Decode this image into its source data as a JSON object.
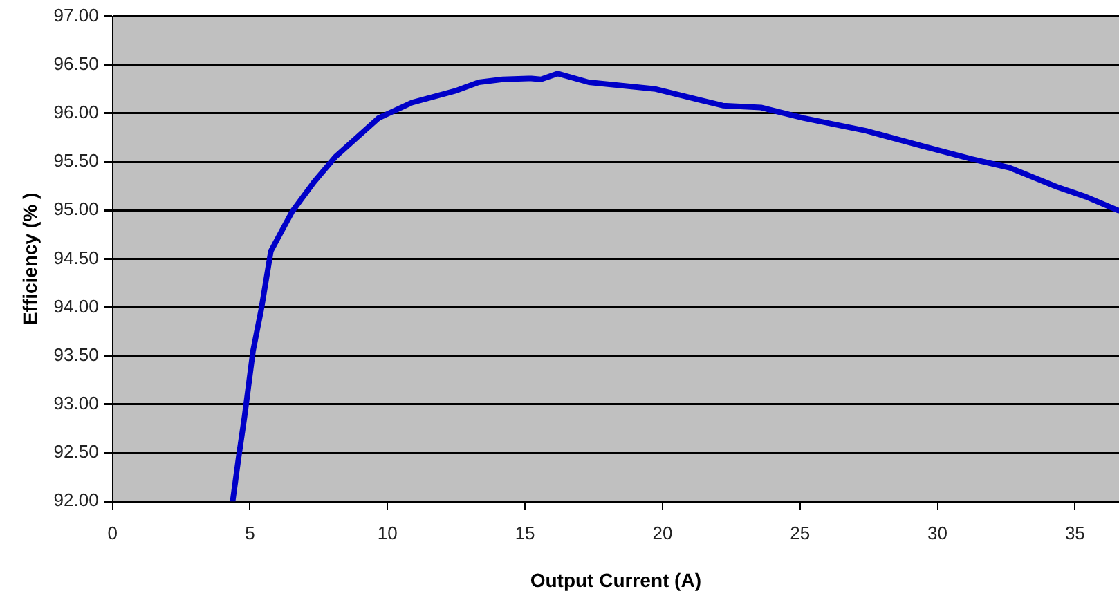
{
  "chart_data": {
    "type": "line",
    "xlabel": "Output Current (A)",
    "ylabel": "Efficiency (% )",
    "x": [
      4.37,
      4.59,
      4.8,
      5.11,
      5.41,
      5.76,
      6.54,
      7.32,
      8.1,
      9.67,
      10.89,
      12.45,
      13.32,
      14.19,
      15.23,
      15.58,
      16.19,
      17.32,
      19.75,
      22.19,
      23.58,
      25.14,
      27.4,
      29.49,
      31.23,
      32.62,
      34.36,
      35.4,
      36.57
    ],
    "series": [
      {
        "color": "#0000c8",
        "values": [
          92.0,
          92.46,
          92.87,
          93.55,
          93.98,
          94.58,
          94.99,
          95.29,
          95.55,
          95.95,
          96.11,
          96.23,
          96.32,
          96.35,
          96.36,
          96.35,
          96.41,
          96.32,
          96.25,
          96.08,
          96.06,
          95.95,
          95.82,
          95.66,
          95.53,
          95.44,
          95.24,
          95.14,
          95.0
        ]
      }
    ],
    "xlim": [
      0,
      36.6
    ],
    "xticks": [
      0,
      5,
      10,
      15,
      20,
      25,
      30,
      35
    ],
    "ylim": [
      92,
      97
    ],
    "yticks": [
      {
        "value": 92,
        "label": "92.00"
      },
      {
        "value": 92.5,
        "label": "92.50"
      },
      {
        "value": 93,
        "label": "93.00"
      },
      {
        "value": 93.5,
        "label": "93.50"
      },
      {
        "value": 94,
        "label": "94.00"
      },
      {
        "value": 94.5,
        "label": "94.50"
      },
      {
        "value": 95,
        "label": "95.00"
      },
      {
        "value": 95.5,
        "label": "95.50"
      },
      {
        "value": 96,
        "label": "96.00"
      },
      {
        "value": 96.5,
        "label": "96.50"
      },
      {
        "value": 97,
        "label": "97.00"
      }
    ],
    "grid": "y",
    "legend": false,
    "marker": "none",
    "line_style": "solid"
  }
}
